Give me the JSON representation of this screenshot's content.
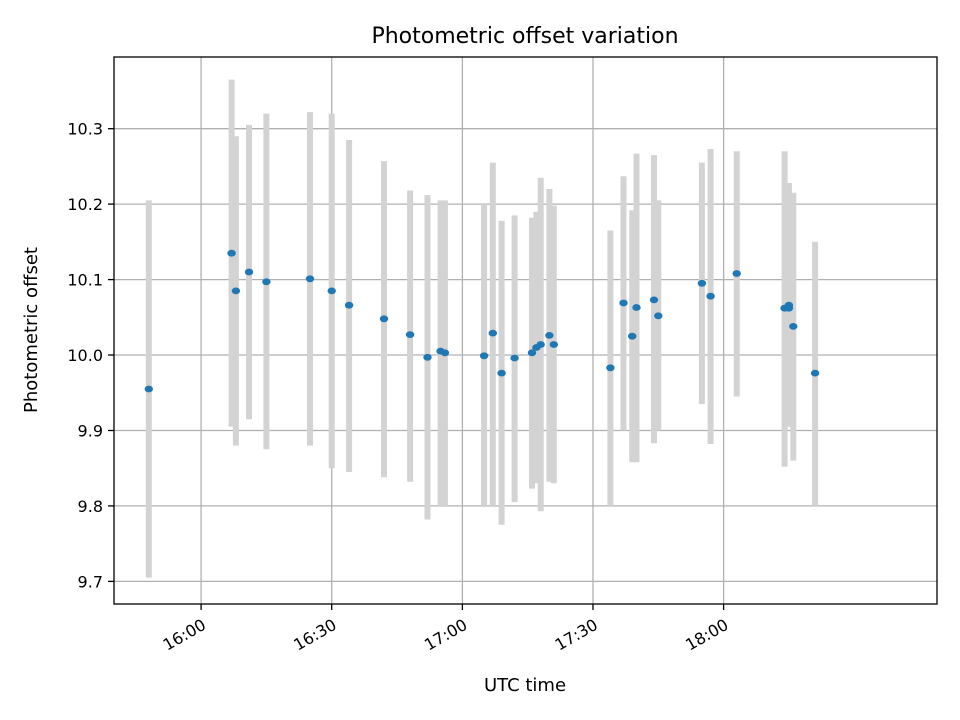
{
  "chart_data": {
    "type": "scatter",
    "title": "Photometric offset variation",
    "xlabel": "UTC time",
    "ylabel": "Photometric offset",
    "xlim": [
      "15:40",
      "18:49"
    ],
    "ylim": [
      9.67,
      10.395
    ],
    "grid": true,
    "x_ticks": [
      "16:00",
      "16:30",
      "17:00",
      "17:30",
      "18:00"
    ],
    "y_ticks": [
      "9.7",
      "9.8",
      "9.9",
      "10.0",
      "10.1",
      "10.2",
      "10.3"
    ],
    "colors": {
      "point": "#1f77b4",
      "errorbar": "#d3d3d3",
      "grid": "#b0b0b0"
    },
    "points": [
      {
        "x": "15:48",
        "y": 9.955,
        "err_low": 9.705,
        "err_high": 10.205
      },
      {
        "x": "16:07",
        "y": 10.135,
        "err_low": 9.905,
        "err_high": 10.365
      },
      {
        "x": "16:08",
        "y": 10.085,
        "err_low": 9.88,
        "err_high": 10.29
      },
      {
        "x": "16:11",
        "y": 10.11,
        "err_low": 9.915,
        "err_high": 10.305
      },
      {
        "x": "16:15",
        "y": 10.097,
        "err_low": 9.875,
        "err_high": 10.32
      },
      {
        "x": "16:25",
        "y": 10.101,
        "err_low": 9.88,
        "err_high": 10.322
      },
      {
        "x": "16:30",
        "y": 10.085,
        "err_low": 9.85,
        "err_high": 10.32
      },
      {
        "x": "16:34",
        "y": 10.066,
        "err_low": 9.845,
        "err_high": 10.285
      },
      {
        "x": "16:42",
        "y": 10.048,
        "err_low": 9.838,
        "err_high": 10.257
      },
      {
        "x": "16:48",
        "y": 10.027,
        "err_low": 9.832,
        "err_high": 10.218
      },
      {
        "x": "16:52",
        "y": 9.997,
        "err_low": 9.782,
        "err_high": 10.212
      },
      {
        "x": "16:55",
        "y": 10.005,
        "err_low": 9.8,
        "err_high": 10.205
      },
      {
        "x": "16:56",
        "y": 10.003,
        "err_low": 9.8,
        "err_high": 10.205
      },
      {
        "x": "17:05",
        "y": 9.999,
        "err_low": 9.8,
        "err_high": 10.2
      },
      {
        "x": "17:07",
        "y": 10.029,
        "err_low": 9.8,
        "err_high": 10.255
      },
      {
        "x": "17:09",
        "y": 9.976,
        "err_low": 9.775,
        "err_high": 10.178
      },
      {
        "x": "17:12",
        "y": 9.996,
        "err_low": 9.805,
        "err_high": 10.185
      },
      {
        "x": "17:16",
        "y": 10.003,
        "err_low": 9.823,
        "err_high": 10.182
      },
      {
        "x": "17:17",
        "y": 10.01,
        "err_low": 9.83,
        "err_high": 10.19
      },
      {
        "x": "17:18",
        "y": 10.014,
        "err_low": 9.793,
        "err_high": 10.235
      },
      {
        "x": "17:20",
        "y": 10.026,
        "err_low": 9.832,
        "err_high": 10.22
      },
      {
        "x": "17:21",
        "y": 10.014,
        "err_low": 9.83,
        "err_high": 10.198
      },
      {
        "x": "17:34",
        "y": 9.983,
        "err_low": 9.8,
        "err_high": 10.165
      },
      {
        "x": "17:37",
        "y": 10.069,
        "err_low": 9.9,
        "err_high": 10.237
      },
      {
        "x": "17:39",
        "y": 10.025,
        "err_low": 9.858,
        "err_high": 10.192
      },
      {
        "x": "17:40",
        "y": 10.063,
        "err_low": 9.858,
        "err_high": 10.267
      },
      {
        "x": "17:44",
        "y": 10.073,
        "err_low": 9.883,
        "err_high": 10.265
      },
      {
        "x": "17:45",
        "y": 10.052,
        "err_low": 9.9,
        "err_high": 10.205
      },
      {
        "x": "17:55",
        "y": 10.095,
        "err_low": 9.935,
        "err_high": 10.255
      },
      {
        "x": "17:57",
        "y": 10.078,
        "err_low": 9.882,
        "err_high": 10.273
      },
      {
        "x": "18:03",
        "y": 10.108,
        "err_low": 9.945,
        "err_high": 10.27
      },
      {
        "x": "18:14",
        "y": 10.062,
        "err_low": 9.852,
        "err_high": 10.27
      },
      {
        "x": "18:15",
        "y": 10.066,
        "err_low": 9.912,
        "err_high": 10.22
      },
      {
        "x": "18:15",
        "y": 10.062,
        "err_low": 9.905,
        "err_high": 10.228
      },
      {
        "x": "18:16",
        "y": 10.038,
        "err_low": 9.86,
        "err_high": 10.215
      },
      {
        "x": "18:21",
        "y": 9.976,
        "err_low": 9.8,
        "err_high": 10.15
      }
    ]
  }
}
